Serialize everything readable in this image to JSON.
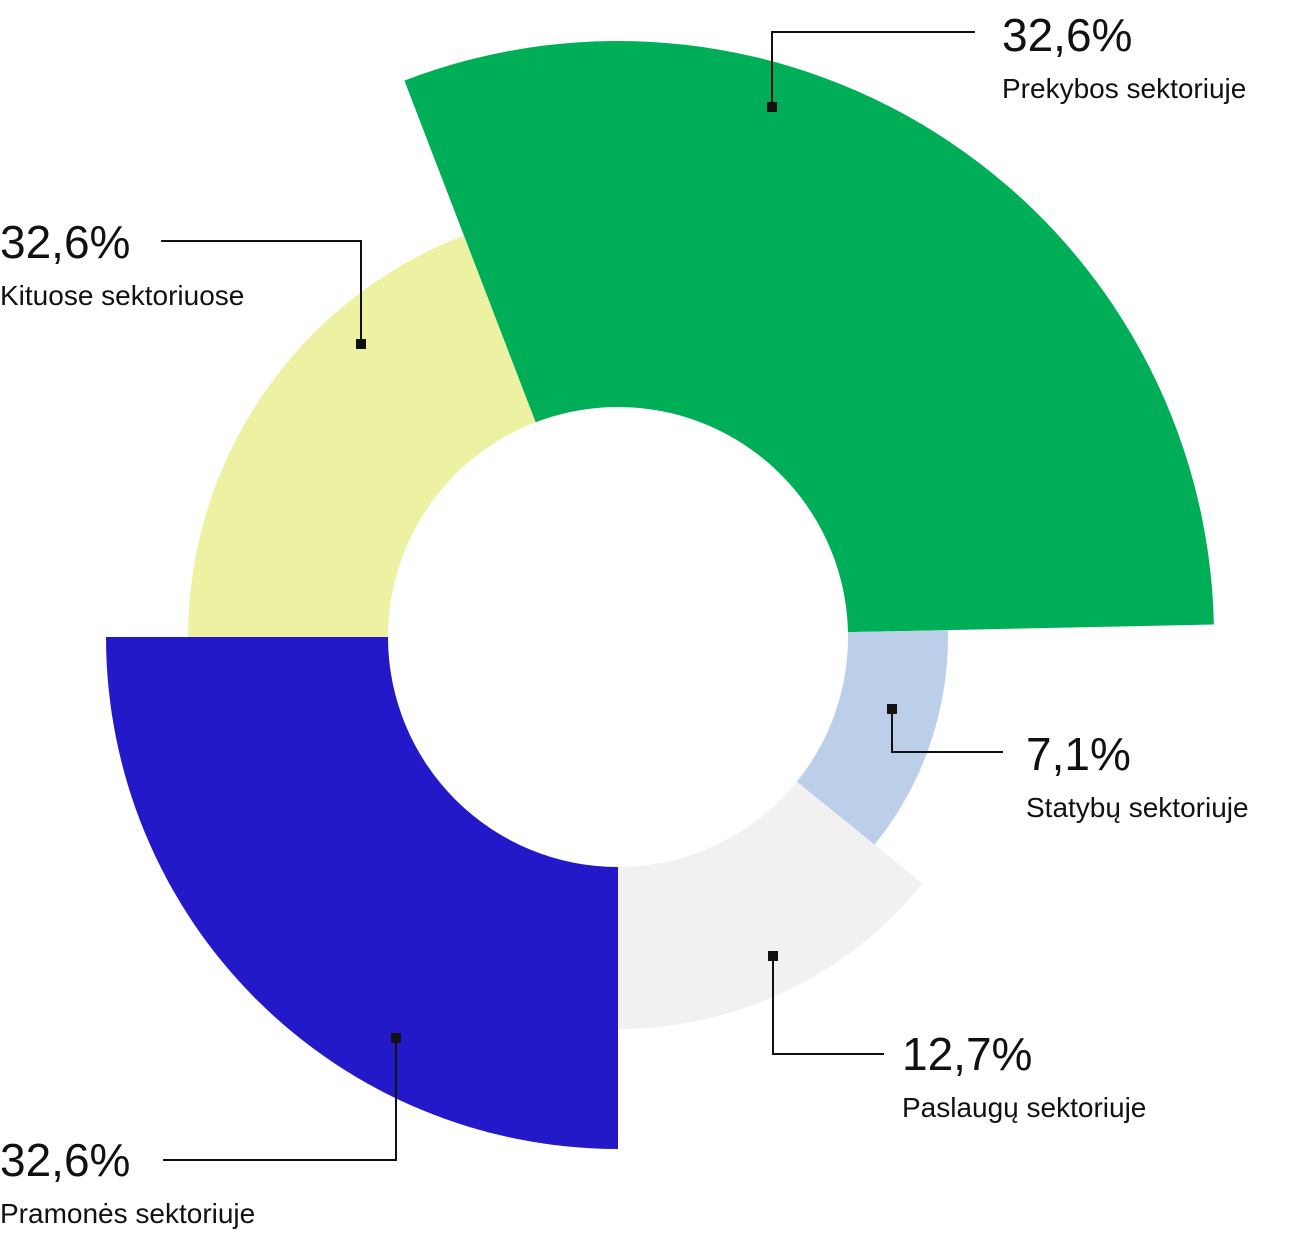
{
  "chart_data": {
    "type": "pie",
    "variant": "radial-donut",
    "title": "",
    "slices": [
      {
        "label": "Prekybos sektoriuje",
        "value_label": "32,6%",
        "value": 32.6,
        "color": "#00AE57"
      },
      {
        "label": "Statybų sektoriuje",
        "value_label": "7,1%",
        "value": 7.1,
        "color": "#BBCFE8"
      },
      {
        "label": "Paslaugų sektoriuje",
        "value_label": "12,7%",
        "value": 12.7,
        "color": "#F1F1F1"
      },
      {
        "label": "Pramonės sektoriuje",
        "value_label": "32,6%",
        "value": 32.6,
        "color": "#2419C9"
      },
      {
        "label": "Kituose sektoriuose",
        "value_label": "32,6%",
        "value": 32.6,
        "color": "#EDF2A3"
      }
    ]
  }
}
